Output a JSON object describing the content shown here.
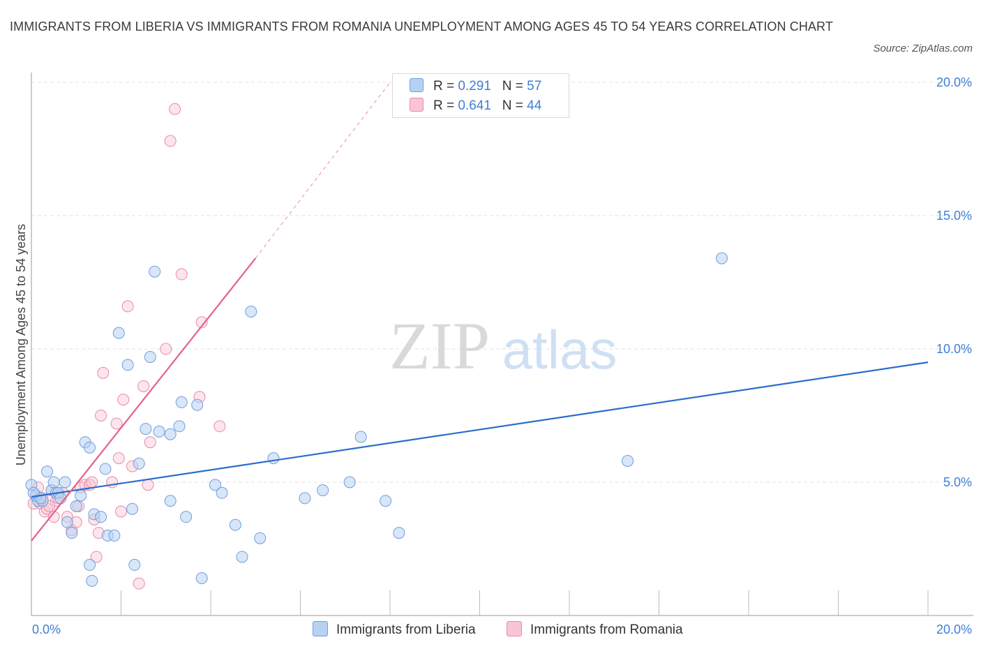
{
  "title": "IMMIGRANTS FROM LIBERIA VS IMMIGRANTS FROM ROMANIA UNEMPLOYMENT AMONG AGES 45 TO 54 YEARS CORRELATION CHART",
  "source": "Source: ZipAtlas.com",
  "watermark": {
    "zip": "ZIP",
    "atlas": "atlas"
  },
  "colors": {
    "liberia_fill": "#b8d1f3",
    "liberia_stroke": "#6f9ede",
    "liberia_line": "#2a6dcc",
    "romania_fill": "#f9c5d5",
    "romania_stroke": "#e98aa8",
    "romania_line": "#e2628a",
    "tick_text": "#3f7fd6",
    "grid": "#e2e2e2"
  },
  "legend_top": {
    "liberia": {
      "r_label": "R = ",
      "r_value": "0.291",
      "n_label": "N = ",
      "n_value": "57"
    },
    "romania": {
      "r_label": "R = ",
      "r_value": "0.641",
      "n_label": "N = ",
      "n_value": "44"
    }
  },
  "chart_data": {
    "type": "scatter",
    "title": "IMMIGRANTS FROM LIBERIA VS IMMIGRANTS FROM ROMANIA UNEMPLOYMENT AMONG AGES 45 TO 54 YEARS CORRELATION CHART",
    "xlabel": "",
    "ylabel": "Unemployment Among Ages 45 to 54 years",
    "xlim": [
      0,
      20
    ],
    "ylim": [
      0,
      20
    ],
    "x_tick_labels": [
      "0.0%",
      "20.0%"
    ],
    "y_ticks": [
      5,
      10,
      15,
      20
    ],
    "y_tick_labels": [
      "5.0%",
      "10.0%",
      "15.0%",
      "20.0%"
    ],
    "grid": true,
    "legend_position": "bottom",
    "series": [
      {
        "name": "Immigrants from Liberia",
        "R": 0.291,
        "N": 57,
        "trend": {
          "x0": 0,
          "y0": 4.45,
          "x1": 20,
          "y1": 9.5
        },
        "points": [
          [
            0.0,
            4.9
          ],
          [
            0.15,
            4.3
          ],
          [
            0.25,
            4.3
          ],
          [
            0.35,
            5.4
          ],
          [
            0.45,
            4.7
          ],
          [
            0.5,
            5.0
          ],
          [
            0.55,
            4.6
          ],
          [
            0.6,
            4.6
          ],
          [
            0.65,
            4.4
          ],
          [
            0.75,
            5.0
          ],
          [
            0.8,
            3.5
          ],
          [
            0.9,
            3.1
          ],
          [
            1.0,
            4.1
          ],
          [
            1.1,
            4.5
          ],
          [
            1.2,
            6.5
          ],
          [
            1.3,
            6.3
          ],
          [
            1.4,
            3.8
          ],
          [
            1.55,
            3.7
          ],
          [
            1.65,
            5.5
          ],
          [
            1.7,
            3.0
          ],
          [
            1.85,
            3.0
          ],
          [
            1.95,
            10.6
          ],
          [
            2.15,
            9.4
          ],
          [
            2.25,
            4.0
          ],
          [
            2.4,
            5.7
          ],
          [
            2.55,
            7.0
          ],
          [
            2.65,
            9.7
          ],
          [
            2.75,
            12.9
          ],
          [
            2.85,
            6.9
          ],
          [
            3.1,
            6.8
          ],
          [
            3.1,
            4.3
          ],
          [
            3.3,
            7.1
          ],
          [
            3.35,
            8.0
          ],
          [
            3.45,
            3.7
          ],
          [
            3.7,
            7.9
          ],
          [
            3.8,
            1.4
          ],
          [
            4.1,
            4.9
          ],
          [
            4.25,
            4.6
          ],
          [
            4.55,
            3.4
          ],
          [
            4.7,
            2.2
          ],
          [
            4.9,
            11.4
          ],
          [
            5.1,
            2.9
          ],
          [
            5.4,
            5.9
          ],
          [
            6.1,
            4.4
          ],
          [
            6.5,
            4.7
          ],
          [
            7.1,
            5.0
          ],
          [
            7.35,
            6.7
          ],
          [
            7.9,
            4.3
          ],
          [
            8.2,
            3.1
          ],
          [
            13.3,
            5.8
          ],
          [
            15.4,
            13.4
          ],
          [
            1.35,
            1.3
          ],
          [
            1.3,
            1.9
          ],
          [
            2.3,
            1.9
          ],
          [
            0.1,
            4.5
          ],
          [
            0.2,
            4.4
          ],
          [
            0.05,
            4.6
          ]
        ]
      },
      {
        "name": "Immigrants from Romania",
        "R": 0.641,
        "N": 44,
        "trend": {
          "x0": 0,
          "y0": 2.8,
          "x1": 5.0,
          "y1": 13.4
        },
        "trend_extension": {
          "x0": 5.0,
          "y0": 13.4,
          "x1": 8.0,
          "y1": 20.0
        },
        "points": [
          [
            0.05,
            4.2
          ],
          [
            0.1,
            4.5
          ],
          [
            0.15,
            4.8
          ],
          [
            0.2,
            4.2
          ],
          [
            0.3,
            3.9
          ],
          [
            0.35,
            4.0
          ],
          [
            0.45,
            4.7
          ],
          [
            0.5,
            3.7
          ],
          [
            0.55,
            4.3
          ],
          [
            0.7,
            4.6
          ],
          [
            0.8,
            3.7
          ],
          [
            0.9,
            3.2
          ],
          [
            1.0,
            3.5
          ],
          [
            1.05,
            4.1
          ],
          [
            1.1,
            4.8
          ],
          [
            1.2,
            4.9
          ],
          [
            1.3,
            4.9
          ],
          [
            1.35,
            5.0
          ],
          [
            1.4,
            3.6
          ],
          [
            1.45,
            2.2
          ],
          [
            1.5,
            3.1
          ],
          [
            1.55,
            7.5
          ],
          [
            1.6,
            9.1
          ],
          [
            1.8,
            5.0
          ],
          [
            1.9,
            7.2
          ],
          [
            1.95,
            5.9
          ],
          [
            2.0,
            3.9
          ],
          [
            2.05,
            8.1
          ],
          [
            2.15,
            11.6
          ],
          [
            2.25,
            5.6
          ],
          [
            2.4,
            1.2
          ],
          [
            2.5,
            8.6
          ],
          [
            2.6,
            4.9
          ],
          [
            2.65,
            6.5
          ],
          [
            3.0,
            10.0
          ],
          [
            3.1,
            17.8
          ],
          [
            3.2,
            19.0
          ],
          [
            3.35,
            12.8
          ],
          [
            3.8,
            11.0
          ],
          [
            3.75,
            8.2
          ],
          [
            4.2,
            7.1
          ],
          [
            0.25,
            4.4
          ],
          [
            0.6,
            4.4
          ],
          [
            0.4,
            4.1
          ]
        ]
      }
    ]
  }
}
